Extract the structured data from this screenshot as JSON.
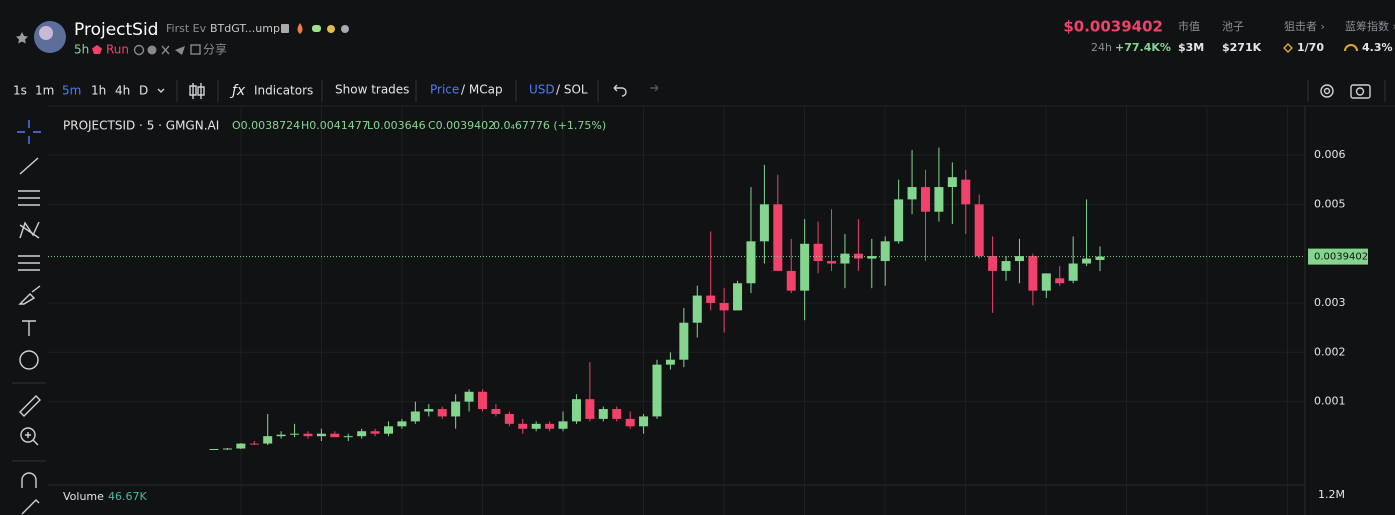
{
  "header": {
    "name": "ProjectSid",
    "tag": "First Ev",
    "address": "BTdGT...ump",
    "age": "5h",
    "status": "Run",
    "share": "分享",
    "price": "$0.0039402",
    "change_period": "24h",
    "change": "+77.4K%",
    "stats": [
      {
        "label": "市值",
        "value": "$3M"
      },
      {
        "label": "池子",
        "value": "$271K"
      },
      {
        "label": "狙击者 ›",
        "value": "1/70"
      },
      {
        "label": "蓝筹指数 ›",
        "value": "4.3%"
      }
    ]
  },
  "toolbar": {
    "intervals": [
      "1s",
      "1m",
      "5m",
      "1h",
      "4h",
      "D"
    ],
    "indicators": "Indicators",
    "show_trades": "Show trades",
    "price": "Price",
    "mcap": "/ MCap",
    "usd": "USD",
    "sol": "/ SOL"
  },
  "chart_data": {
    "type": "candlestick",
    "legend": {
      "symbol": "PROJECTSID · 5 · GMGN.AI",
      "items": [
        "O0.0038724",
        "H0.0041477",
        "L0.003646",
        "C0.0039402",
        "0.0₄67776 (+1.75%)"
      ]
    },
    "open": [
      2e-05,
      4e-05,
      5e-05,
      0.00015,
      0.00015,
      0.0003,
      0.00033,
      0.00035,
      0.0003,
      0.00035,
      0.00028,
      0.0003,
      0.0004,
      0.00035,
      0.0005,
      0.0006,
      0.0008,
      0.00085,
      0.0007,
      0.001,
      0.0012,
      0.00085,
      0.00075,
      0.00055,
      0.00045,
      0.00055,
      0.00045,
      0.0006,
      0.00105,
      0.00065,
      0.00085,
      0.00065,
      0.0005,
      0.0007,
      0.00175,
      0.00185,
      0.0026,
      0.00315,
      0.003,
      0.00285,
      0.0034,
      0.00425,
      0.005,
      0.00365,
      0.00325,
      0.0042,
      0.00385,
      0.0038,
      0.004,
      0.0039,
      0.00385,
      0.00425,
      0.0051,
      0.00535,
      0.00485,
      0.00535,
      0.0055,
      0.005,
      0.00395,
      0.00365,
      0.00385,
      0.00395,
      0.00325,
      0.0035,
      0.00345,
      0.0038,
      0.0038724
    ],
    "high": [
      4e-05,
      6e-05,
      0.00016,
      0.0002,
      0.00075,
      0.0004,
      0.00055,
      0.0004,
      0.00045,
      0.0004,
      0.00035,
      0.00045,
      0.00045,
      0.0006,
      0.00065,
      0.001,
      0.00095,
      0.0009,
      0.00115,
      0.00125,
      0.00125,
      0.00095,
      0.0008,
      0.00065,
      0.0006,
      0.0006,
      0.0008,
      0.00115,
      0.0018,
      0.0009,
      0.0009,
      0.0008,
      0.00075,
      0.00185,
      0.002,
      0.0029,
      0.00335,
      0.00445,
      0.0033,
      0.00345,
      0.00535,
      0.0058,
      0.0056,
      0.0043,
      0.0047,
      0.00465,
      0.0049,
      0.0044,
      0.0047,
      0.0043,
      0.00435,
      0.0055,
      0.0061,
      0.0057,
      0.00615,
      0.00585,
      0.0057,
      0.0052,
      0.00435,
      0.00395,
      0.0043,
      0.004,
      0.0036,
      0.00375,
      0.00435,
      0.0051,
      0.0041477
    ],
    "low": [
      2e-05,
      2e-05,
      4e-05,
      0.00012,
      0.00012,
      0.00025,
      0.00028,
      0.00025,
      0.0002,
      0.00028,
      0.0002,
      0.00025,
      0.0003,
      0.0003,
      0.00045,
      0.00055,
      0.0007,
      0.00065,
      0.00045,
      0.0008,
      0.0008,
      0.0007,
      0.0005,
      0.00035,
      0.0004,
      0.0004,
      0.0004,
      0.00055,
      0.0006,
      0.0006,
      0.0006,
      0.00045,
      0.00035,
      0.00065,
      0.00165,
      0.0017,
      0.0023,
      0.00285,
      0.0024,
      0.00285,
      0.0032,
      0.0038,
      0.0037,
      0.0032,
      0.00265,
      0.0036,
      0.00365,
      0.0033,
      0.00365,
      0.0033,
      0.00335,
      0.0042,
      0.0048,
      0.00385,
      0.00465,
      0.0046,
      0.0044,
      0.0039,
      0.0028,
      0.00345,
      0.0034,
      0.00295,
      0.0031,
      0.00335,
      0.0034,
      0.00375,
      0.003646
    ],
    "close": [
      4e-05,
      5e-05,
      0.00015,
      0.00014,
      0.0003,
      0.00033,
      0.00035,
      0.0003,
      0.00035,
      0.00028,
      0.0003,
      0.0004,
      0.00035,
      0.0005,
      0.0006,
      0.0008,
      0.00085,
      0.0007,
      0.001,
      0.0012,
      0.00085,
      0.00075,
      0.00055,
      0.00045,
      0.00055,
      0.00045,
      0.0006,
      0.00105,
      0.00065,
      0.00085,
      0.00065,
      0.0005,
      0.0007,
      0.00175,
      0.00185,
      0.0026,
      0.00315,
      0.003,
      0.00285,
      0.0034,
      0.00425,
      0.005,
      0.00365,
      0.00325,
      0.0042,
      0.00385,
      0.0038,
      0.004,
      0.0039,
      0.00395,
      0.00425,
      0.0051,
      0.00535,
      0.00485,
      0.00535,
      0.00555,
      0.005,
      0.00395,
      0.00365,
      0.00385,
      0.00395,
      0.00325,
      0.0036,
      0.0034,
      0.0038,
      0.0039,
      0.0039402
    ],
    "up_color": "#84d68f",
    "down_color": "#f0426a",
    "ylim": [
      -0.00069,
      0.00675
    ],
    "yticks": [
      0.001,
      0.002,
      0.003,
      0.005,
      0.006
    ],
    "grid": true,
    "price_line": 0.0039402,
    "volume": {
      "label": "Volume",
      "value": "46.67K",
      "tick": "1.2M"
    }
  }
}
